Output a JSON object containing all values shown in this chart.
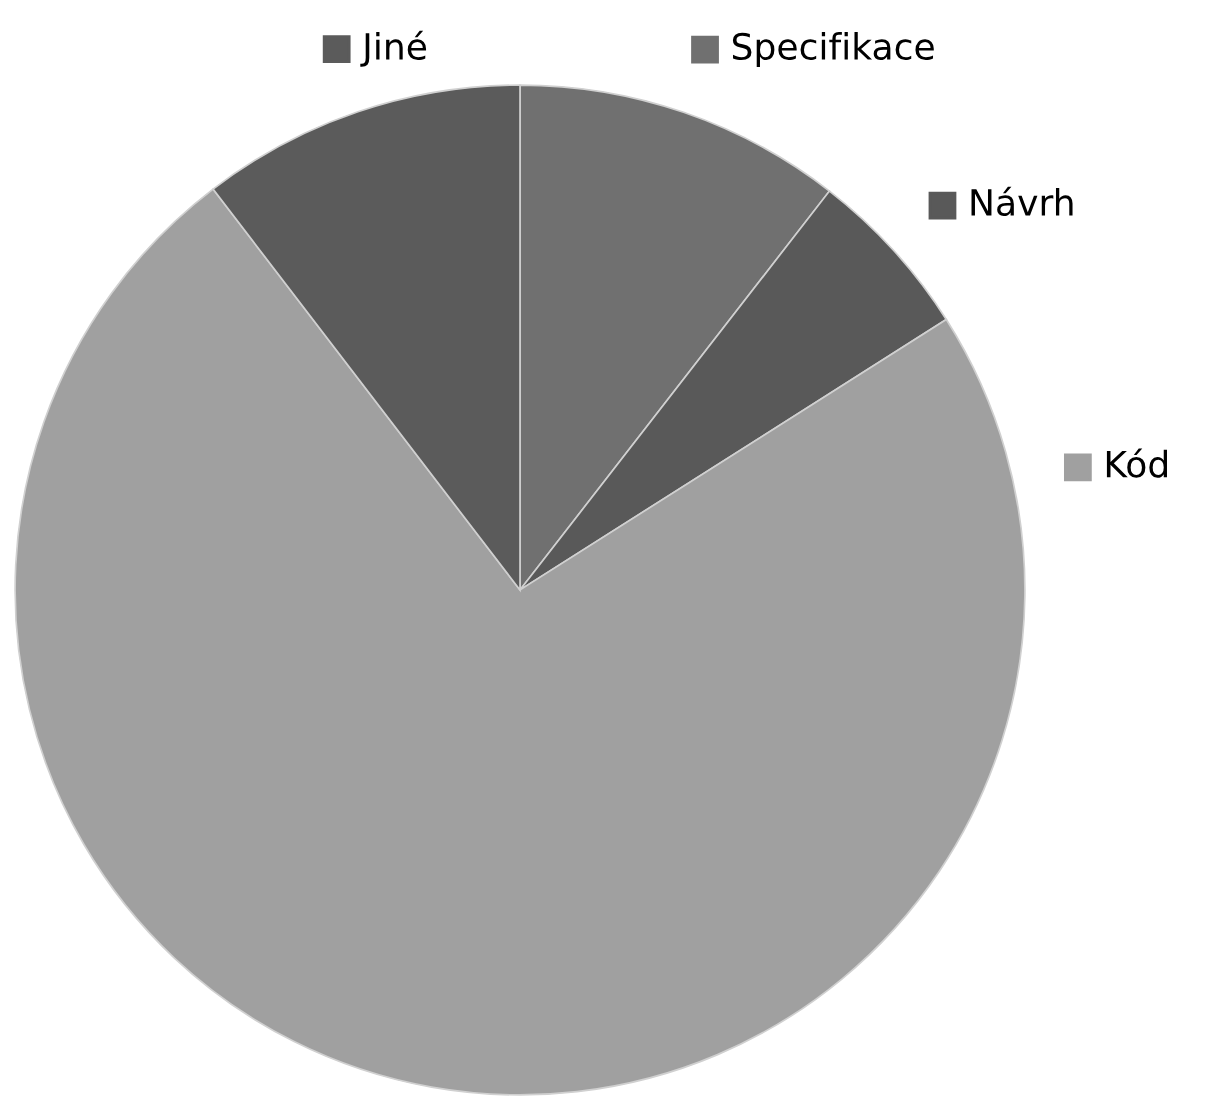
{
  "chart_data": {
    "type": "pie",
    "categories": [
      "Specifikace",
      "Návrh",
      "Kód",
      "Jiné"
    ],
    "values": [
      10.5,
      5.5,
      73.6,
      10.4
    ],
    "colors": [
      "#707070",
      "#595959",
      "#a0a0a0",
      "#5b5b5b"
    ],
    "legend": "top right"
  }
}
